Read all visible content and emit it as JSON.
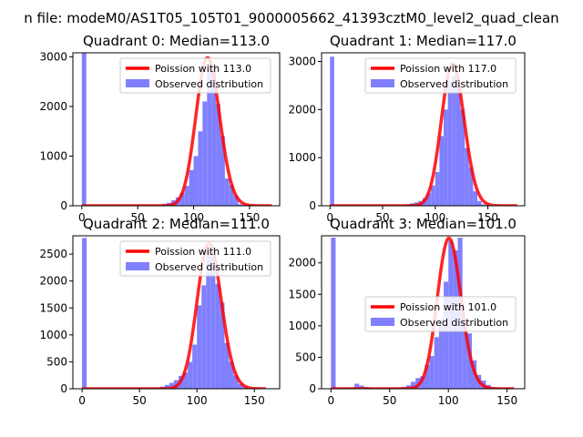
{
  "figure": {
    "suptitle": "n file: modeM0/AS1T05_105T01_9000005662_41393cztM0_level2_quad_clean"
  },
  "colors": {
    "hist": "#8080ff",
    "curve": "#ff0000",
    "axes": "#000000",
    "background": "#ffffff"
  },
  "chart_data": [
    {
      "type": "bar",
      "title": "Quadrant 0: Median=113.0",
      "xlim": [
        -8,
        177
      ],
      "ylim": [
        0,
        3080
      ],
      "xticks": [
        0,
        50,
        100,
        150
      ],
      "yticks": [
        0,
        1000,
        2000,
        3000
      ],
      "legend": [
        "Poission with 113.0",
        "Observed distribution"
      ],
      "legend_loc": "upper-right",
      "lambda": 113.0,
      "curve_peak": 2980,
      "curve_xmax": 170,
      "bin_width": 4,
      "bins": [
        [
          0,
          3100
        ],
        [
          64,
          5
        ],
        [
          68,
          20
        ],
        [
          72,
          40
        ],
        [
          76,
          60
        ],
        [
          80,
          110
        ],
        [
          84,
          170
        ],
        [
          88,
          260
        ],
        [
          92,
          400
        ],
        [
          96,
          720
        ],
        [
          100,
          1000
        ],
        [
          104,
          1500
        ],
        [
          108,
          2100
        ],
        [
          112,
          2750
        ],
        [
          116,
          2800
        ],
        [
          120,
          2050
        ],
        [
          124,
          1400
        ],
        [
          128,
          550
        ],
        [
          132,
          420
        ],
        [
          136,
          200
        ],
        [
          140,
          30
        ],
        [
          144,
          10
        ]
      ]
    },
    {
      "type": "bar",
      "title": "Quadrant 1: Median=117.0",
      "xlim": [
        -8,
        185
      ],
      "ylim": [
        0,
        3180
      ],
      "xticks": [
        0,
        50,
        100,
        150
      ],
      "yticks": [
        0,
        1000,
        2000,
        3000
      ],
      "legend": [
        "Poission with 117.0",
        "Observed distribution"
      ],
      "legend_loc": "upper-right",
      "lambda": 117.0,
      "curve_peak": 2950,
      "curve_xmax": 178,
      "bin_width": 4,
      "bins": [
        [
          0,
          3100
        ],
        [
          64,
          5
        ],
        [
          68,
          15
        ],
        [
          72,
          30
        ],
        [
          76,
          50
        ],
        [
          80,
          70
        ],
        [
          84,
          100
        ],
        [
          88,
          160
        ],
        [
          92,
          260
        ],
        [
          96,
          420
        ],
        [
          100,
          700
        ],
        [
          104,
          1450
        ],
        [
          108,
          2000
        ],
        [
          112,
          2600
        ],
        [
          116,
          2700
        ],
        [
          120,
          2500
        ],
        [
          124,
          2000
        ],
        [
          128,
          1200
        ],
        [
          132,
          800
        ],
        [
          136,
          300
        ],
        [
          140,
          100
        ],
        [
          144,
          30
        ]
      ]
    },
    {
      "type": "bar",
      "title": "Quadrant 2: Median=111.0",
      "xlim": [
        -8,
        172
      ],
      "ylim": [
        0,
        2840
      ],
      "xticks": [
        0,
        50,
        100,
        150
      ],
      "yticks": [
        0,
        500,
        1000,
        1500,
        2000,
        2500
      ],
      "legend": [
        "Poission with 111.0",
        "Observed distribution"
      ],
      "legend_loc": "upper-right",
      "lambda": 111.0,
      "curve_peak": 2700,
      "curve_xmax": 160,
      "bin_width": 4,
      "bins": [
        [
          0,
          2800
        ],
        [
          60,
          5
        ],
        [
          64,
          15
        ],
        [
          68,
          40
        ],
        [
          72,
          70
        ],
        [
          76,
          110
        ],
        [
          80,
          160
        ],
        [
          84,
          240
        ],
        [
          88,
          300
        ],
        [
          92,
          500
        ],
        [
          96,
          820
        ],
        [
          100,
          1550
        ],
        [
          104,
          1920
        ],
        [
          108,
          2550
        ],
        [
          112,
          2450
        ],
        [
          116,
          1950
        ],
        [
          120,
          1600
        ],
        [
          124,
          850
        ],
        [
          128,
          500
        ],
        [
          132,
          250
        ],
        [
          136,
          90
        ],
        [
          140,
          30
        ],
        [
          144,
          10
        ]
      ]
    },
    {
      "type": "bar",
      "title": "Quadrant 3: Median=101.0",
      "xlim": [
        -8,
        165
      ],
      "ylim": [
        0,
        2430
      ],
      "xticks": [
        0,
        50,
        100,
        150
      ],
      "yticks": [
        0,
        500,
        1000,
        1500,
        2000
      ],
      "legend": [
        "Poission with 101.0",
        "Observed distribution"
      ],
      "legend_loc": "center-right",
      "lambda": 101.0,
      "curve_peak": 2390,
      "curve_xmax": 156,
      "bin_width": 4,
      "bins": [
        [
          0,
          2400
        ],
        [
          16,
          20
        ],
        [
          20,
          80
        ],
        [
          24,
          50
        ],
        [
          28,
          30
        ],
        [
          32,
          15
        ],
        [
          40,
          5
        ],
        [
          48,
          10
        ],
        [
          56,
          15
        ],
        [
          60,
          30
        ],
        [
          64,
          55
        ],
        [
          68,
          110
        ],
        [
          72,
          170
        ],
        [
          76,
          200
        ],
        [
          80,
          380
        ],
        [
          84,
          520
        ],
        [
          88,
          820
        ],
        [
          92,
          1100
        ],
        [
          96,
          1700
        ],
        [
          100,
          2350
        ],
        [
          104,
          2200
        ],
        [
          108,
          2400
        ],
        [
          112,
          1050
        ],
        [
          116,
          880
        ],
        [
          120,
          450
        ],
        [
          124,
          220
        ],
        [
          128,
          130
        ],
        [
          132,
          60
        ],
        [
          136,
          25
        ],
        [
          140,
          15
        ]
      ]
    }
  ]
}
